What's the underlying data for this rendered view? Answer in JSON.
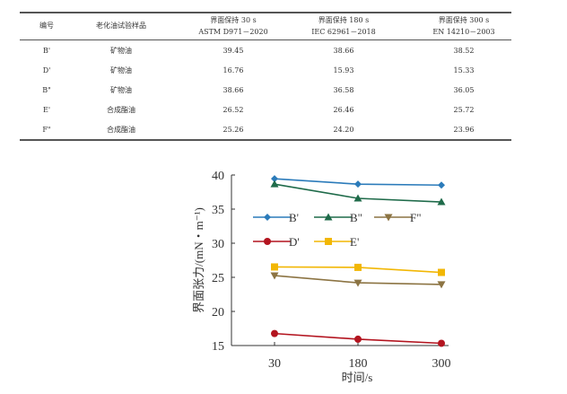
{
  "table": {
    "headers": [
      [
        "编号"
      ],
      [
        "老化油试验样品"
      ],
      [
        "界面保持 30 s",
        "ASTM D971－2020"
      ],
      [
        "界面保持 180 s",
        "IEC 62961－2018"
      ],
      [
        "界面保持 300 s",
        "EN 14210－2003"
      ]
    ],
    "rows": [
      [
        "B'",
        "矿物油",
        "39.45",
        "38.66",
        "38.52"
      ],
      [
        "D'",
        "矿物油",
        "16.76",
        "15.93",
        "15.33"
      ],
      [
        "B\"",
        "矿物油",
        "38.66",
        "36.58",
        "36.05"
      ],
      [
        "E'",
        "合成酯油",
        "26.52",
        "26.46",
        "25.72"
      ],
      [
        "F\"",
        "合成酯油",
        "25.26",
        "24.20",
        "23.96"
      ]
    ]
  },
  "chart_data": {
    "type": "line",
    "categories": [
      "30",
      "180",
      "300"
    ],
    "xlabel": "时间/s",
    "ylabel": "界面张力/(mN・m⁻¹)",
    "ylim": [
      15,
      40
    ],
    "yticks": [
      "15",
      "20",
      "25",
      "30",
      "35",
      "40"
    ],
    "legend": "inside-middle",
    "series": [
      {
        "name": "B'",
        "values": [
          39.45,
          38.66,
          38.52
        ],
        "color": "#2b7bba",
        "marker": "diamond"
      },
      {
        "name": "B\"",
        "values": [
          38.66,
          36.58,
          36.05
        ],
        "color": "#1f6b4a",
        "marker": "triangle-up"
      },
      {
        "name": "F\"",
        "values": [
          25.26,
          24.2,
          23.96
        ],
        "color": "#8c7443",
        "marker": "triangle-down"
      },
      {
        "name": "D'",
        "values": [
          16.76,
          15.93,
          15.33
        ],
        "color": "#b3141f",
        "marker": "circle"
      },
      {
        "name": "E'",
        "values": [
          26.52,
          26.46,
          25.72
        ],
        "color": "#f2b705",
        "marker": "square"
      }
    ]
  }
}
